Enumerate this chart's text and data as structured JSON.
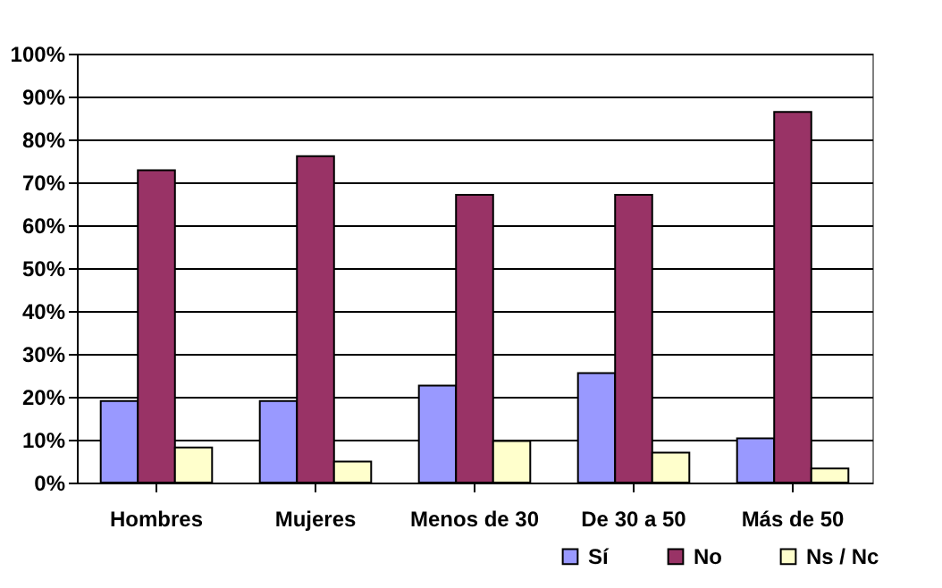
{
  "chart_data": {
    "type": "bar",
    "categories": [
      "Hombres",
      "Mujeres",
      "Menos de 30",
      "De 30 a 50",
      "Más de 50"
    ],
    "series": [
      {
        "name": "Sí",
        "color": "#9999ff",
        "values": [
          19,
          19,
          22.6,
          25.5,
          10.3
        ]
      },
      {
        "name": "No",
        "color": "#993366",
        "values": [
          72.8,
          76.1,
          67.1,
          67.1,
          86.4
        ]
      },
      {
        "name": "Ns / Nc",
        "color": "#ffffcc",
        "values": [
          8.2,
          4.9,
          9.7,
          7,
          3.3
        ]
      }
    ],
    "ylim": [
      0,
      100
    ],
    "yticks": [
      {
        "value": 0,
        "label": "0%"
      },
      {
        "value": 10,
        "label": "10%"
      },
      {
        "value": 20,
        "label": "20%"
      },
      {
        "value": 30,
        "label": "30%"
      },
      {
        "value": 40,
        "label": "40%"
      },
      {
        "value": 50,
        "label": "50%"
      },
      {
        "value": 60,
        "label": "60%"
      },
      {
        "value": 70,
        "label": "70%"
      },
      {
        "value": 80,
        "label": "80%"
      },
      {
        "value": 90,
        "label": "90%"
      },
      {
        "value": 100,
        "label": "100%"
      }
    ],
    "grid": "y",
    "legend": "bottom right"
  }
}
